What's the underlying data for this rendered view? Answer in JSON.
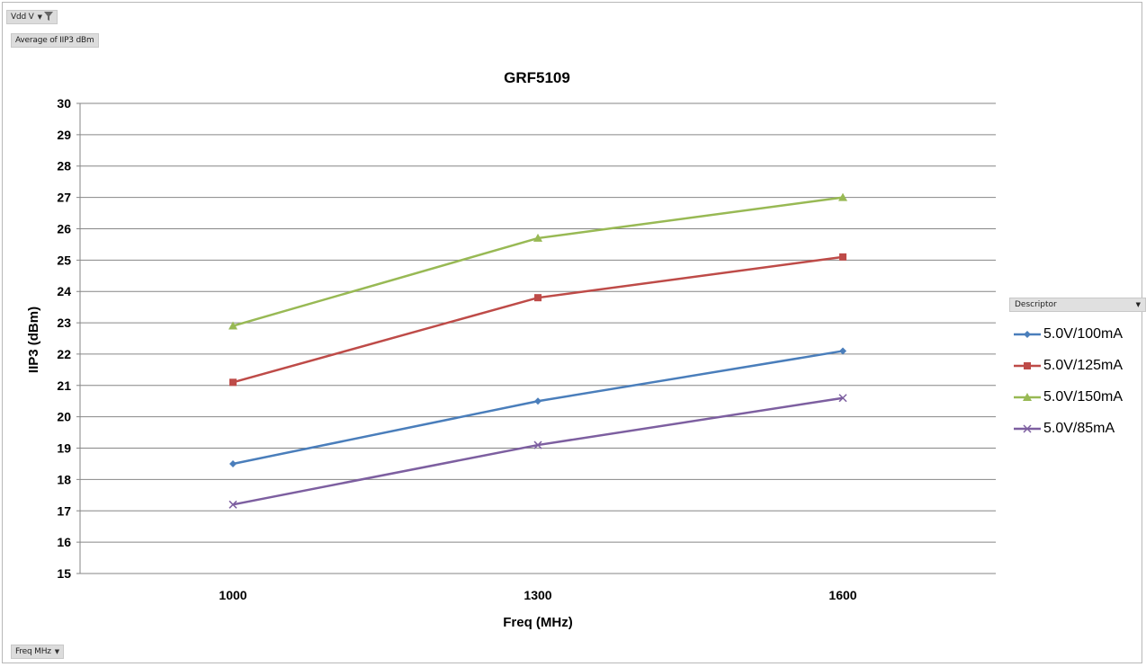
{
  "pivot": {
    "filter_field": "Vdd V",
    "value_field": "Average of IIP3 dBm",
    "axis_field": "Freq MHz",
    "legend_field": "Descriptor"
  },
  "chart_data": {
    "type": "line",
    "title": "GRF5109",
    "xlabel": "Freq (MHz)",
    "ylabel": "IIP3 (dBm)",
    "categories": [
      "1000",
      "1300",
      "1600"
    ],
    "ylim": [
      15,
      30
    ],
    "yticks": [
      15,
      16,
      17,
      18,
      19,
      20,
      21,
      22,
      23,
      24,
      25,
      26,
      27,
      28,
      29,
      30
    ],
    "grid": true,
    "legend_position": "right",
    "series": [
      {
        "name": "5.0V/100mA",
        "values": [
          18.5,
          20.5,
          22.1
        ],
        "color": "#4a7ebb",
        "marker": "diamond"
      },
      {
        "name": "5.0V/125mA",
        "values": [
          21.1,
          23.8,
          25.1
        ],
        "color": "#be4b48",
        "marker": "square"
      },
      {
        "name": "5.0V/150mA",
        "values": [
          22.9,
          25.7,
          27.0
        ],
        "color": "#98b954",
        "marker": "triangle"
      },
      {
        "name": "5.0V/85mA",
        "values": [
          17.2,
          19.1,
          20.6
        ],
        "color": "#7d5fa0",
        "marker": "x"
      }
    ]
  }
}
